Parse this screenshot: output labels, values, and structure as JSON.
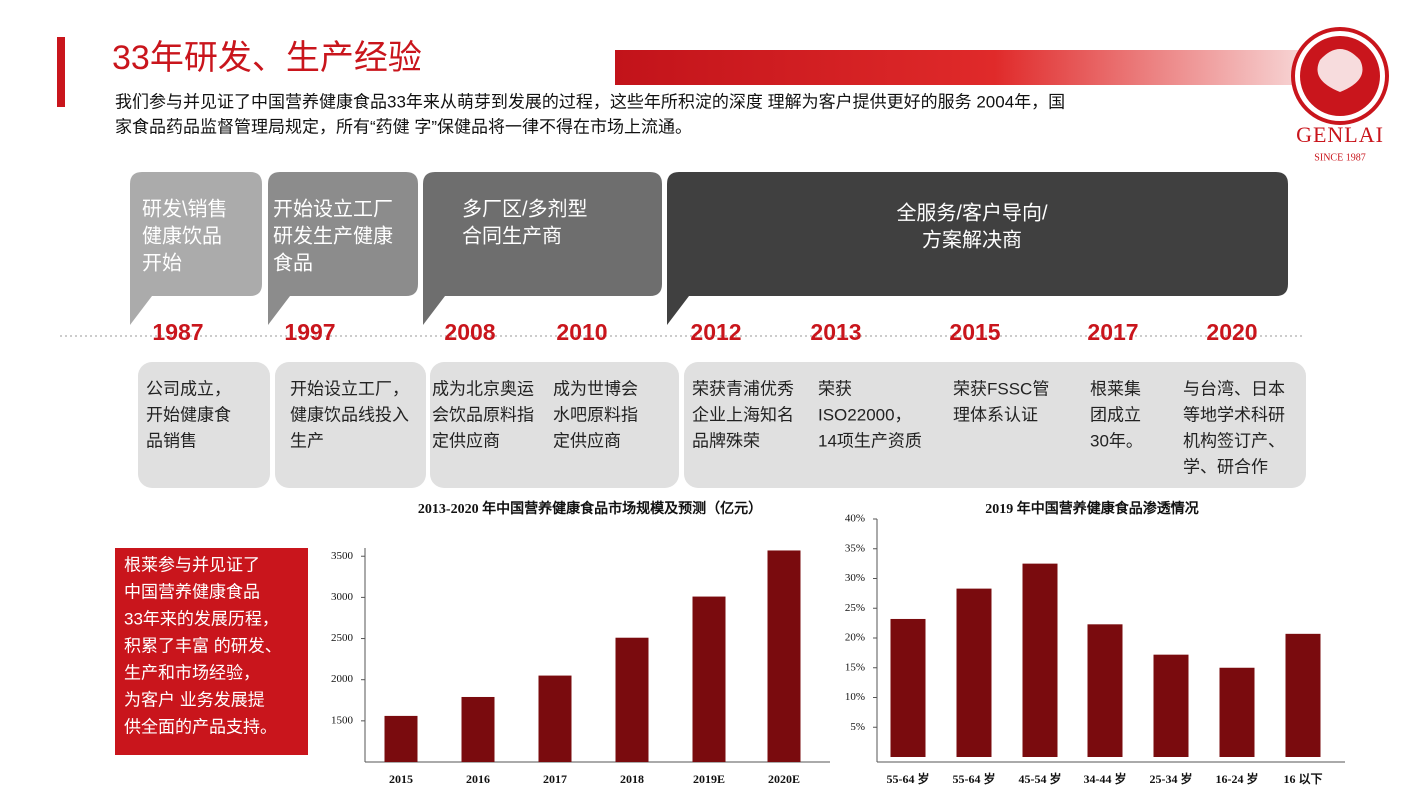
{
  "header": {
    "title": "33年研发、生产经验",
    "intro": [
      "我们参与并见证了中国营养健康食品33年来从萌芽到发展的过程，这些年所积淀的深度 理解为客户提供更好的服务 2004年，国",
      "家食品药品监督管理局规定，所有“药健 字”保健品将一律不得在市场上流通。"
    ]
  },
  "logo": {
    "brand": "GENLAI",
    "since": "SINCE 1987"
  },
  "phases": [
    {
      "lines": [
        "研发\\销售",
        "健康饮品",
        "开始"
      ]
    },
    {
      "lines": [
        "开始设立工厂",
        "研发生产健康",
        "食品"
      ]
    },
    {
      "lines": [
        "多厂区/多剂型",
        "合同生产商"
      ]
    },
    {
      "lines": [
        "全服务/客户导向/",
        "方案解决商"
      ]
    }
  ],
  "timeline": [
    {
      "year": "1987",
      "lines": [
        "公司成立，",
        "开始健康食",
        "品销售"
      ]
    },
    {
      "year": "1997",
      "lines": [
        "开始设立工厂，",
        "健康饮品线投入",
        "生产"
      ]
    },
    {
      "year": "2008",
      "lines": [
        "成为北京奥运",
        "会饮品原料指",
        "定供应商"
      ]
    },
    {
      "year": "2010",
      "lines": [
        "成为世博会",
        "水吧原料指",
        "定供应商"
      ]
    },
    {
      "year": "2012",
      "lines": [
        "荣获青浦优秀",
        "企业上海知名",
        "品牌殊荣"
      ]
    },
    {
      "year": "2013",
      "lines": [
        "荣获",
        "ISO22000，",
        "14项生产资质"
      ]
    },
    {
      "year": "2015",
      "lines": [
        "荣获FSSC管",
        "理体系认证"
      ]
    },
    {
      "year": "2017",
      "lines": [
        "根莱集",
        "团成立",
        "30年。"
      ]
    },
    {
      "year": "2020",
      "lines": [
        "与台湾、日本",
        "等地学术科研",
        "机构签订产、",
        "学、研合作"
      ]
    }
  ],
  "side_note": [
    "根莱参与并见证了",
    "中国营养健康食品",
    "33年来的发展历程，",
    "积累了丰富 的研发、",
    "生产和市场经验，",
    "为客户 业务发展提",
    "供全面的产品支持。"
  ],
  "chart_data": [
    {
      "type": "bar",
      "title": "2013-2020 年中国营养健康食品市场规模及预测（亿元）",
      "categories": [
        "2015",
        "2016",
        "2017",
        "2018",
        "2019E",
        "2020E"
      ],
      "values": [
        1560,
        1790,
        2050,
        2510,
        3010,
        3570
      ],
      "color": "#7a0b0e",
      "ylim": [
        1000,
        3600
      ],
      "yticks": [
        1500,
        2000,
        2500,
        3000,
        3500
      ],
      "grid": false
    },
    {
      "type": "bar",
      "title": "2019 年中国营养健康食品渗透情况",
      "categories": [
        "55-64 岁",
        "55-64 岁",
        "45-54 岁",
        "34-44 岁",
        "25-34 岁",
        "16-24 岁",
        "16 以下"
      ],
      "values": [
        23.2,
        28.3,
        32.5,
        22.3,
        17.2,
        15,
        20.7
      ],
      "color": "#7a0b0e",
      "ylim": [
        0,
        40
      ],
      "yticks": [
        {
          "value": 5,
          "label": "5%"
        },
        {
          "value": 10,
          "label": "10%"
        },
        {
          "value": 15,
          "label": "15%"
        },
        {
          "value": 20,
          "label": "20%"
        },
        {
          "value": 25,
          "label": "25%"
        },
        {
          "value": 30,
          "label": "30%"
        },
        {
          "value": 35,
          "label": "35%"
        },
        {
          "value": 40,
          "label": "40%"
        }
      ],
      "grid": false
    }
  ]
}
